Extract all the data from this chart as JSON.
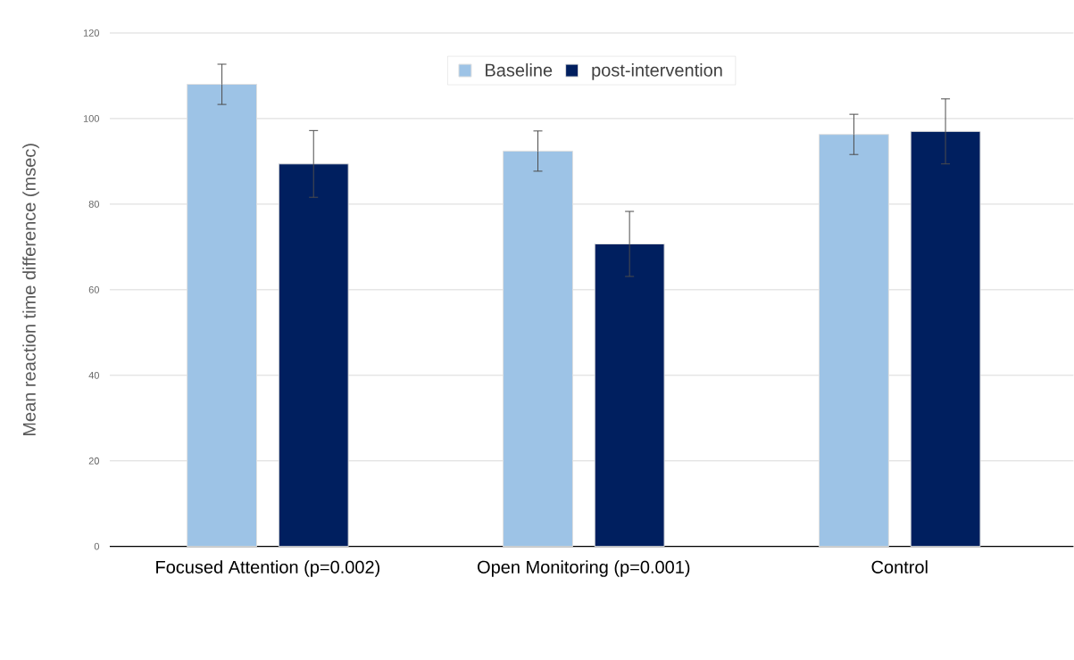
{
  "chart_data": {
    "type": "bar",
    "ylabel": "Mean reaction time difference (msec)",
    "categories": [
      "Focused Attention (p=0.002)",
      "Open Monitoring (p=0.001)",
      "Control"
    ],
    "series": [
      {
        "name": "Baseline",
        "color": "#9dc3e6",
        "values": [
          108.0,
          92.4,
          96.3
        ],
        "errors": [
          4.7,
          4.7,
          4.7
        ]
      },
      {
        "name": "post-intervention",
        "color": "#001f5f",
        "values": [
          89.4,
          70.7,
          97.0
        ],
        "errors": [
          7.8,
          7.6,
          7.6
        ]
      }
    ],
    "ylim": [
      0,
      120
    ],
    "yticks": [
      0,
      20,
      40,
      60,
      80,
      100,
      120
    ],
    "grid": "y",
    "legend": "top"
  }
}
